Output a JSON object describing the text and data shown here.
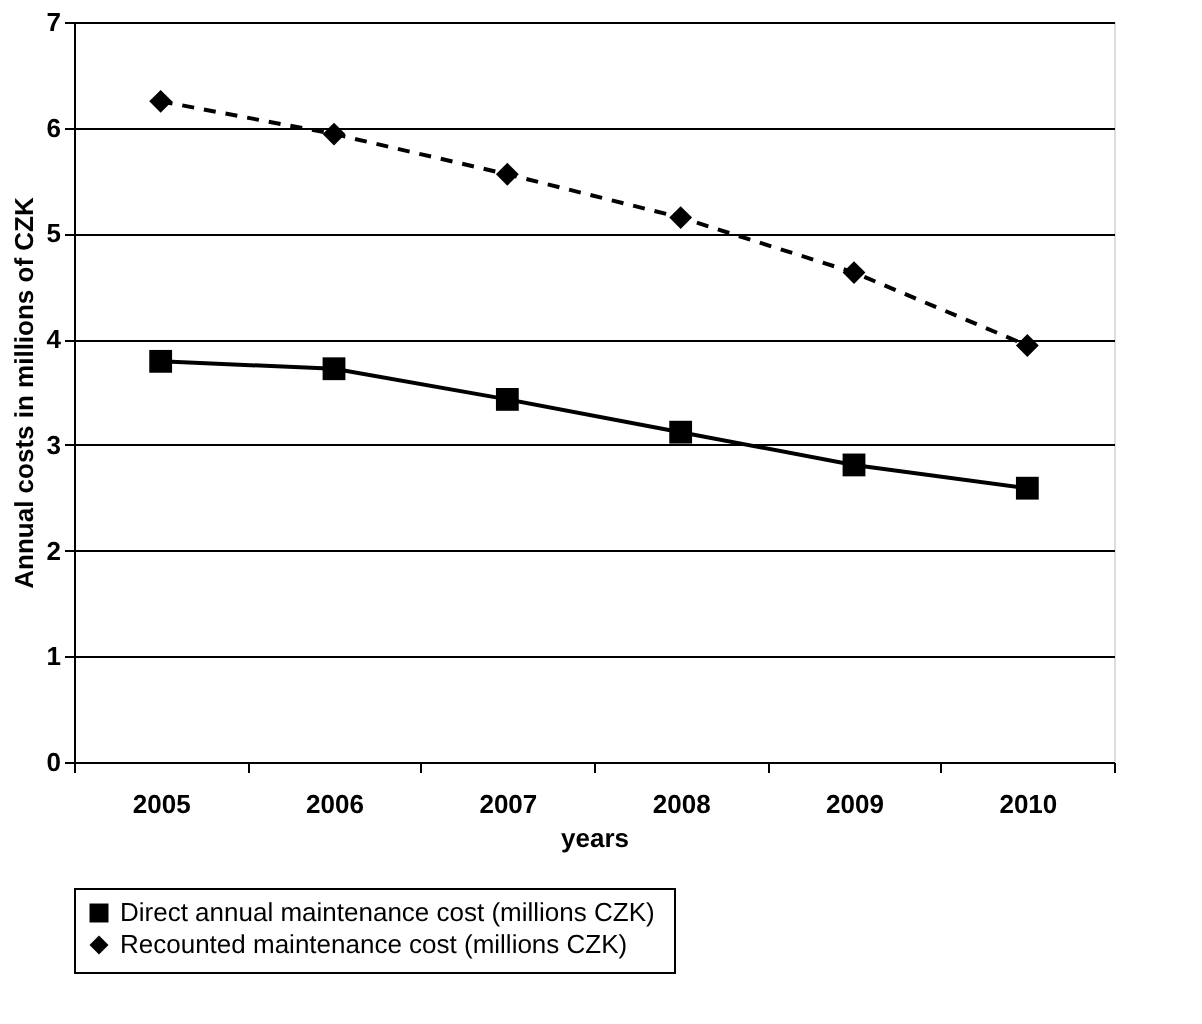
{
  "chart_data": {
    "type": "line",
    "xlabel": "years",
    "ylabel": "Annual costs in millions of CZK",
    "categories": [
      "2005",
      "2006",
      "2007",
      "2008",
      "2009",
      "2010"
    ],
    "series": [
      {
        "name": "Direct annual  maintenance cost (millions CZK)",
        "color": "#000000",
        "marker": "square",
        "line_style": "solid",
        "values": [
          3.79,
          3.72,
          3.43,
          3.12,
          2.81,
          2.59
        ]
      },
      {
        "name": "Recounted maintenance cost (millions CZK)",
        "color": "#000000",
        "marker": "diamond",
        "line_style": "dashed",
        "values": [
          6.25,
          5.94,
          5.56,
          5.15,
          4.63,
          3.94
        ]
      }
    ],
    "ylim": [
      0,
      7
    ],
    "yticks": [
      0,
      1,
      2,
      3,
      4,
      5,
      6,
      7
    ],
    "grid": "y",
    "legend": "bottom"
  }
}
